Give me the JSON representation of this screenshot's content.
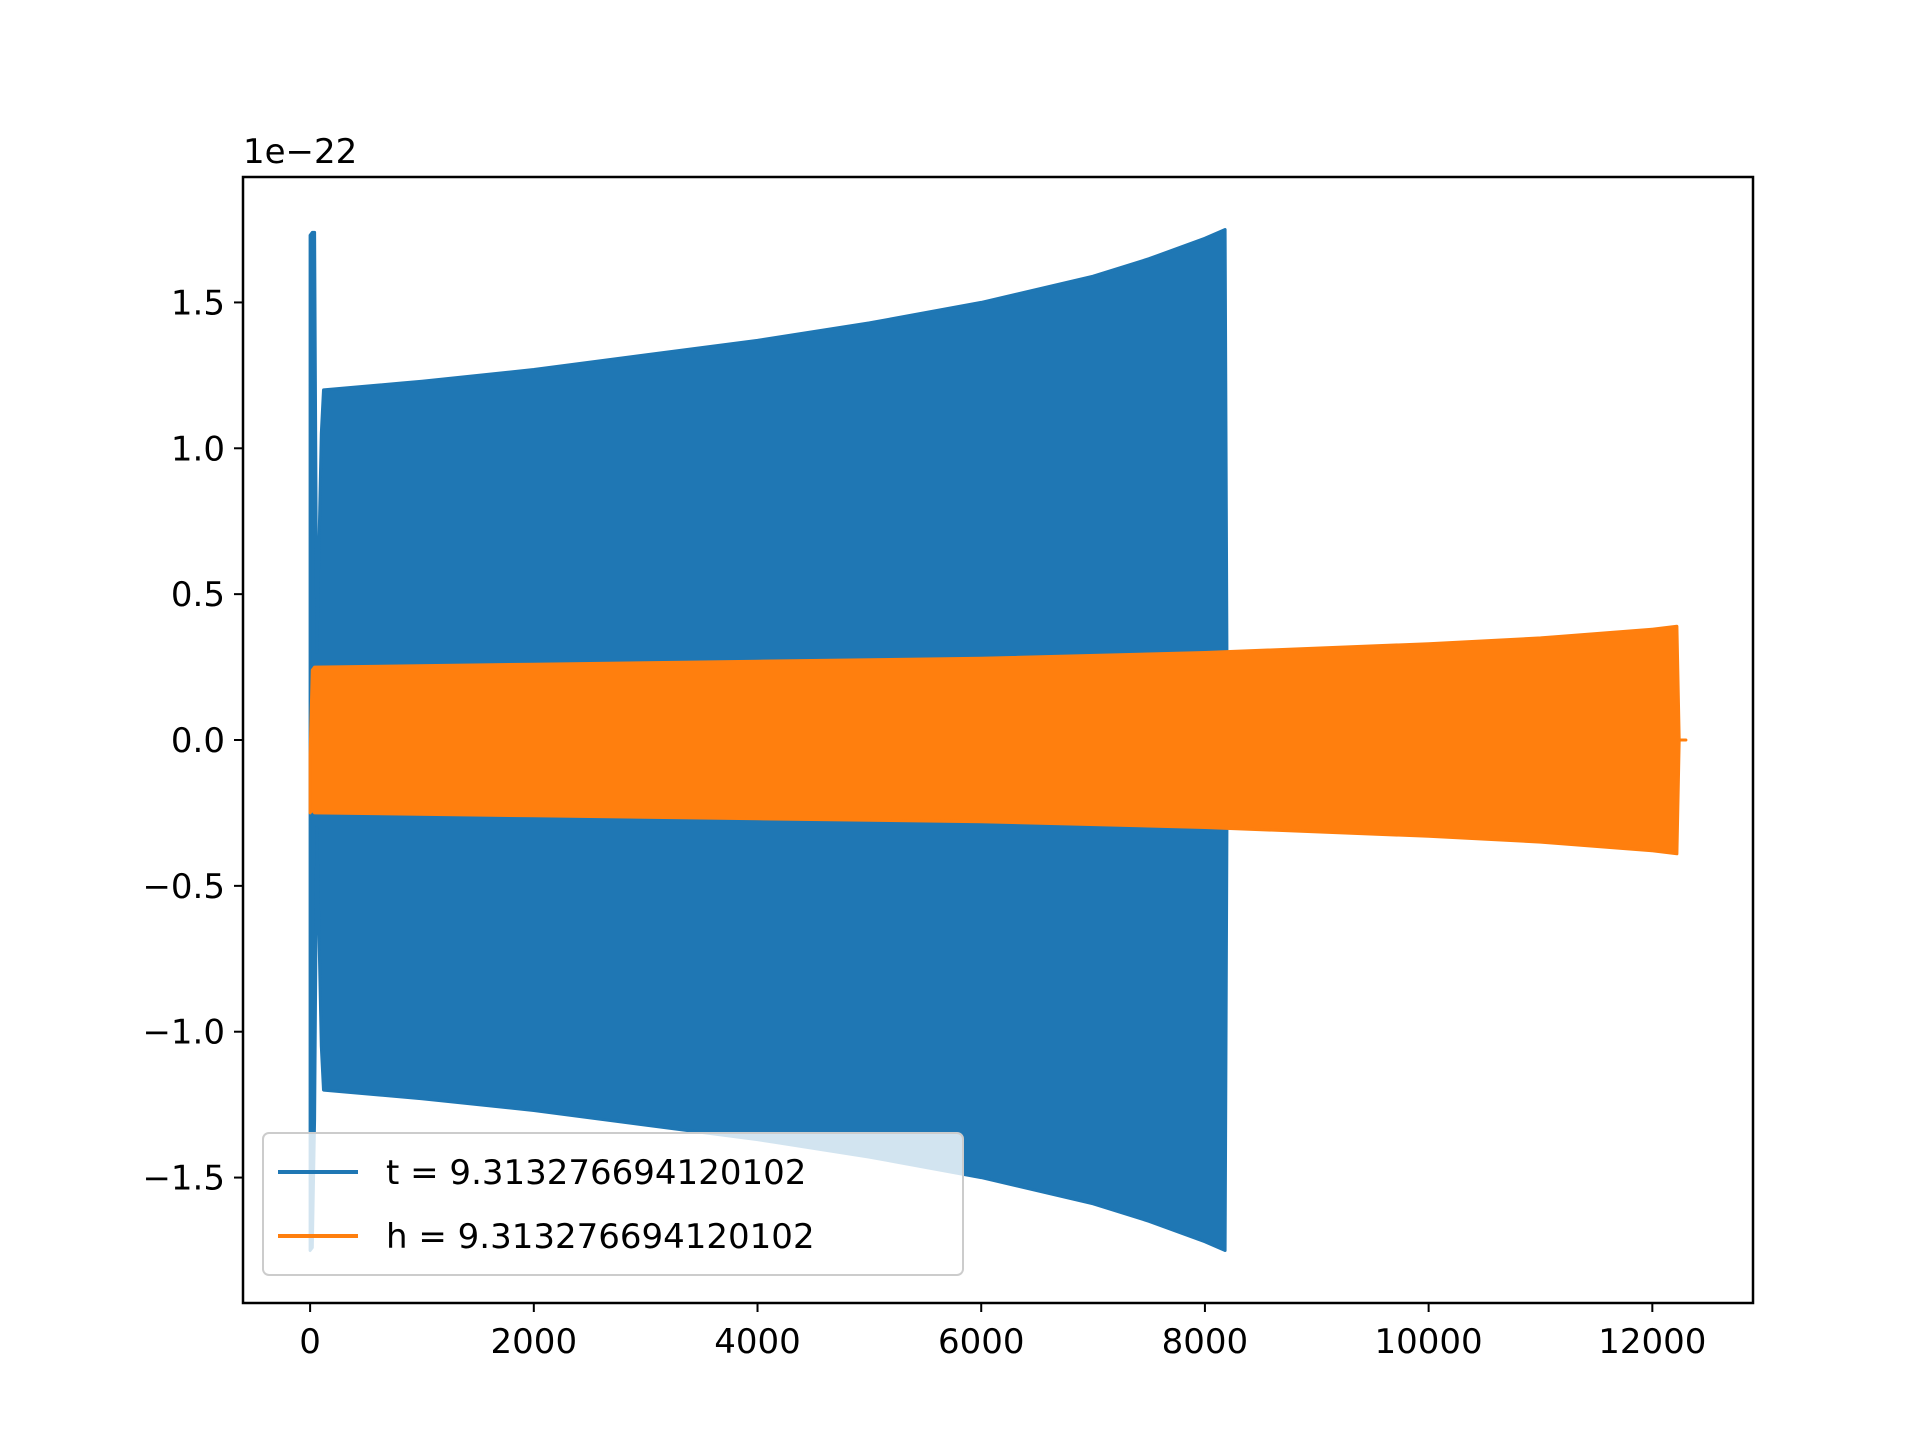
{
  "chart_data": {
    "type": "line",
    "title": "",
    "xlabel": "",
    "ylabel": "",
    "y_offset_label": "1e−22",
    "xlim": [
      -600,
      12900
    ],
    "ylim": [
      -1.93,
      1.93
    ],
    "x_ticks": [
      0,
      2000,
      4000,
      6000,
      8000,
      10000,
      12000
    ],
    "x_tick_labels": [
      "0",
      "2000",
      "4000",
      "6000",
      "8000",
      "10000",
      "12000"
    ],
    "y_ticks": [
      -1.5,
      -1.0,
      -0.5,
      0.0,
      0.5,
      1.0,
      1.5
    ],
    "y_tick_labels": [
      "−1.5",
      "−1.0",
      "−0.5",
      "0.0",
      "0.5",
      "1.0",
      "1.5"
    ],
    "grid": false,
    "legend_position": "lower-left",
    "series": [
      {
        "name": "t = 9.313276694120102",
        "color": "#1f77b4",
        "envelope": {
          "x": [
            0,
            20,
            40,
            60,
            100,
            120,
            1000,
            2000,
            3000,
            4000,
            5000,
            6000,
            7000,
            7500,
            8000,
            8180,
            8200
          ],
          "upper": [
            1.73,
            1.74,
            1.74,
            0.3,
            1.05,
            1.2,
            1.23,
            1.27,
            1.32,
            1.37,
            1.43,
            1.5,
            1.59,
            1.65,
            1.72,
            1.75,
            0.0
          ],
          "lower": [
            -1.75,
            -1.74,
            -1.3,
            -0.3,
            -1.05,
            -1.2,
            -1.23,
            -1.27,
            -1.32,
            -1.37,
            -1.43,
            -1.5,
            -1.59,
            -1.65,
            -1.72,
            -1.75,
            0.0
          ]
        }
      },
      {
        "name": "h = 9.313276694120102",
        "color": "#ff7f0e",
        "envelope": {
          "x": [
            0,
            20,
            40,
            2000,
            4000,
            6000,
            8000,
            10000,
            11000,
            12000,
            12220,
            12240,
            12300
          ],
          "upper": [
            -0.05,
            0.24,
            0.25,
            0.26,
            0.27,
            0.28,
            0.3,
            0.33,
            0.35,
            0.38,
            0.39,
            0.0,
            0.0
          ],
          "lower": [
            -0.25,
            -0.24,
            -0.25,
            -0.26,
            -0.27,
            -0.28,
            -0.3,
            -0.33,
            -0.35,
            -0.38,
            -0.39,
            0.0,
            0.0
          ]
        }
      }
    ]
  }
}
